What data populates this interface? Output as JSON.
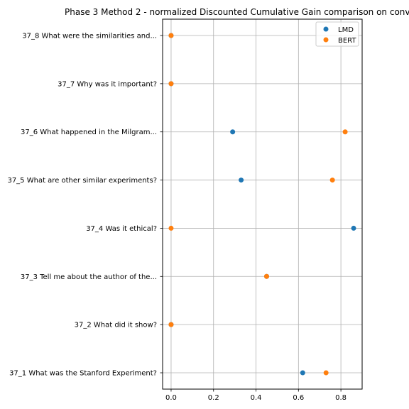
{
  "chart_data": {
    "type": "scatter",
    "title": "Phase 3 Method 2 - normalized Discounted Cumulative Gain comparison on conv",
    "xlabel": "",
    "ylabel": "",
    "xlim": [
      -0.04,
      0.9
    ],
    "x_ticks": [
      "0.0",
      "0.2",
      "0.4",
      "0.6",
      "0.8"
    ],
    "grid": true,
    "legend_position": "top-right",
    "categories": [
      "37_1 What was the Stanford Experiment?",
      "37_2 What did it show?",
      "37_3 Tell me about the author of the...",
      "37_4 Was it ethical?",
      "37_5 What are other similar experiments?",
      "37_6 What happened in the Milgram...",
      "37_7 Why was it important?",
      "37_8 What were the similarities and..."
    ],
    "series": [
      {
        "name": "LMD",
        "color": "#1f77b4",
        "values": [
          0.62,
          0.0,
          0.45,
          0.86,
          0.33,
          0.29,
          0.0,
          0.0
        ]
      },
      {
        "name": "BERT",
        "color": "#ff7f0e",
        "values": [
          0.73,
          0.0,
          0.45,
          0.0,
          0.76,
          0.82,
          0.0,
          0.0
        ]
      }
    ]
  }
}
